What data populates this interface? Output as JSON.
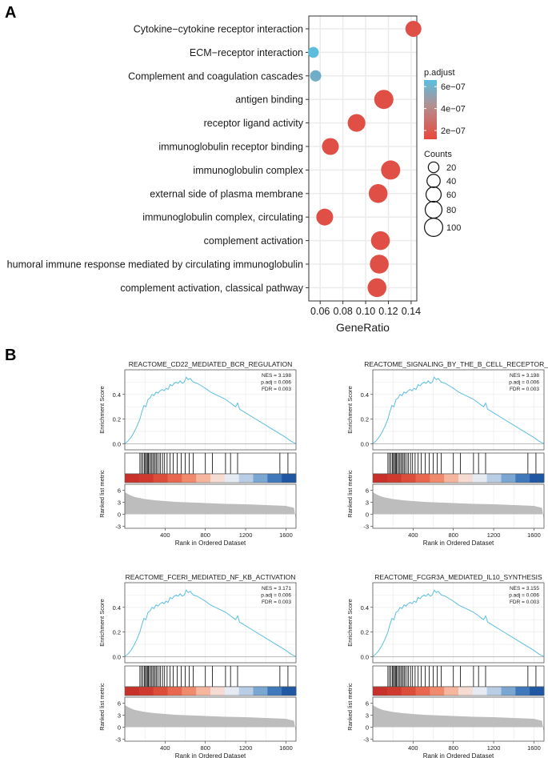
{
  "panel_a_label": "A",
  "panel_b_label": "B",
  "chart_data": [
    {
      "type": "scatter",
      "subtype": "dotplot",
      "xlabel": "GeneRatio",
      "xlim": [
        0.05,
        0.145
      ],
      "xticks": [
        0.06,
        0.08,
        0.1,
        0.12,
        0.14
      ],
      "xtick_labels": [
        "0.06",
        "0.08",
        "0.10",
        "0.12",
        "0.14"
      ],
      "grid": true,
      "terms": [
        {
          "label": "Cytokine−cytokine receptor interaction",
          "x": 0.142,
          "count": 60,
          "p_adjust": 1.5e-07
        },
        {
          "label": "ECM−receptor interaction",
          "x": 0.054,
          "count": 18,
          "p_adjust": 6.5e-07
        },
        {
          "label": "Complement and coagulation cascades",
          "x": 0.056,
          "count": 20,
          "p_adjust": 5.8e-07
        },
        {
          "label": "antigen binding",
          "x": 0.116,
          "count": 100,
          "p_adjust": 1.5e-07
        },
        {
          "label": "receptor ligand activity",
          "x": 0.092,
          "count": 80,
          "p_adjust": 1.5e-07
        },
        {
          "label": "immunoglobulin receptor binding",
          "x": 0.069,
          "count": 70,
          "p_adjust": 1.5e-07
        },
        {
          "label": "immunoglobulin complex",
          "x": 0.122,
          "count": 100,
          "p_adjust": 1.5e-07
        },
        {
          "label": "external side of plasma membrane",
          "x": 0.111,
          "count": 95,
          "p_adjust": 1.5e-07
        },
        {
          "label": "immunoglobulin complex, circulating",
          "x": 0.064,
          "count": 70,
          "p_adjust": 1.5e-07
        },
        {
          "label": "complement activation",
          "x": 0.113,
          "count": 95,
          "p_adjust": 1.5e-07
        },
        {
          "label": "humoral immune response mediated by circulating immunoglobulin",
          "x": 0.112,
          "count": 95,
          "p_adjust": 1.5e-07
        },
        {
          "label": "complement activation, classical pathway",
          "x": 0.11,
          "count": 95,
          "p_adjust": 1.5e-07
        }
      ],
      "legend": {
        "color_title": "p.adjust",
        "color_ticks": [
          {
            "value": 6e-07,
            "label": "6e−07"
          },
          {
            "value": 4e-07,
            "label": "4e−07"
          },
          {
            "value": 2e-07,
            "label": "2e−07"
          }
        ],
        "color_range": [
          1.2e-07,
          6.6e-07
        ],
        "color_low": "#e8483c",
        "color_high": "#5bbfe0",
        "size_title": "Counts",
        "size_items": [
          20,
          40,
          60,
          80,
          100
        ]
      }
    },
    {
      "type": "line",
      "subtype": "gsea",
      "title": "REACTOME_CD22_MEDIATED_BCR_REGULATION",
      "stats": [
        "NES = 3.198",
        "p.adj = 0.006",
        "FDR = 0.003"
      ],
      "ylabel_top": "Enrichment Score",
      "ylabel_bottom": "Ranked list metric",
      "xlabel": "Rank in Ordered Dataset",
      "xlim": [
        0,
        1700
      ],
      "xticks": [
        400,
        800,
        1200,
        1600
      ],
      "es_ylim": [
        -0.05,
        0.6
      ],
      "es_yticks": [
        0.0,
        0.2,
        0.4
      ],
      "es_ytick_labels": [
        "0.0",
        "0.2",
        "0.4"
      ],
      "metric_ylim": [
        -3.5,
        7.5
      ],
      "metric_yticks": [
        -3,
        0,
        3,
        6
      ],
      "metric_ytick_labels": [
        "-3",
        "0",
        "3",
        "6"
      ],
      "es_curve": {
        "x": [
          0,
          30,
          60,
          90,
          120,
          150,
          170,
          190,
          210,
          230,
          250,
          270,
          290,
          310,
          330,
          350,
          370,
          390,
          410,
          430,
          450,
          470,
          490,
          510,
          530,
          550,
          570,
          590,
          610,
          630,
          650,
          680,
          720,
          760,
          800,
          850,
          900,
          950,
          1000,
          1050,
          1100,
          1120,
          1140,
          1200,
          1300,
          1400,
          1500,
          1600,
          1650,
          1700
        ],
        "y": [
          0,
          0.02,
          0.05,
          0.09,
          0.14,
          0.2,
          0.26,
          0.31,
          0.3,
          0.36,
          0.37,
          0.4,
          0.39,
          0.42,
          0.41,
          0.43,
          0.44,
          0.43,
          0.45,
          0.44,
          0.48,
          0.47,
          0.49,
          0.5,
          0.49,
          0.51,
          0.49,
          0.5,
          0.54,
          0.52,
          0.53,
          0.5,
          0.49,
          0.47,
          0.45,
          0.42,
          0.4,
          0.38,
          0.36,
          0.33,
          0.3,
          0.33,
          0.28,
          0.25,
          0.2,
          0.15,
          0.1,
          0.05,
          0.02,
          0.0
        ]
      },
      "hits": [
        150,
        165,
        180,
        195,
        205,
        215,
        225,
        235,
        245,
        260,
        270,
        285,
        295,
        310,
        320,
        340,
        355,
        375,
        395,
        420,
        450,
        480,
        520,
        560,
        600,
        640,
        680,
        800,
        870,
        1000,
        1050,
        1120,
        1540,
        1620
      ],
      "metric_curve": {
        "x": [
          0,
          50,
          100,
          200,
          300,
          400,
          500,
          600,
          800,
          1000,
          1200,
          1400,
          1600,
          1680,
          1700
        ],
        "y": [
          5.5,
          4.8,
          4.3,
          3.8,
          3.5,
          3.3,
          3.1,
          3.0,
          2.8,
          2.6,
          2.5,
          2.3,
          2.1,
          1.6,
          -1.5
        ]
      }
    },
    {
      "type": "line",
      "subtype": "gsea",
      "title": "REACTOME_SIGNALING_BY_THE_B_CELL_RECEPTOR_B",
      "stats": [
        "NES = 3.198",
        "p.adj = 0.006",
        "FDR = 0.003"
      ],
      "ylabel_top": "Enrichment Score",
      "ylabel_bottom": "Ranked list metric",
      "xlabel": "Rank in Ordered Dataset",
      "xlim": [
        0,
        1700
      ],
      "xticks": [
        400,
        800,
        1200,
        1600
      ],
      "es_ylim": [
        -0.05,
        0.6
      ],
      "es_yticks": [
        0.0,
        0.2,
        0.4
      ],
      "es_ytick_labels": [
        "0.0",
        "0.2",
        "0.4"
      ],
      "metric_ylim": [
        -3.5,
        7.5
      ],
      "metric_yticks": [
        -3,
        0,
        3,
        6
      ],
      "metric_ytick_labels": [
        "-3",
        "0",
        "3",
        "6"
      ],
      "es_curve": {
        "x": [
          0,
          30,
          60,
          90,
          120,
          150,
          170,
          190,
          210,
          230,
          250,
          270,
          290,
          310,
          330,
          350,
          370,
          390,
          410,
          430,
          450,
          470,
          490,
          510,
          530,
          550,
          570,
          590,
          610,
          630,
          650,
          680,
          720,
          760,
          800,
          850,
          900,
          950,
          1000,
          1050,
          1100,
          1120,
          1140,
          1200,
          1300,
          1400,
          1500,
          1600,
          1650,
          1700
        ],
        "y": [
          0,
          0.02,
          0.05,
          0.09,
          0.14,
          0.2,
          0.26,
          0.31,
          0.3,
          0.36,
          0.37,
          0.4,
          0.39,
          0.42,
          0.41,
          0.43,
          0.44,
          0.43,
          0.45,
          0.44,
          0.48,
          0.47,
          0.49,
          0.5,
          0.49,
          0.51,
          0.49,
          0.5,
          0.54,
          0.52,
          0.53,
          0.5,
          0.49,
          0.47,
          0.45,
          0.42,
          0.4,
          0.38,
          0.36,
          0.33,
          0.3,
          0.33,
          0.28,
          0.25,
          0.2,
          0.15,
          0.1,
          0.05,
          0.02,
          0.0
        ]
      },
      "hits": [
        150,
        165,
        180,
        195,
        205,
        215,
        225,
        235,
        245,
        260,
        270,
        285,
        295,
        310,
        320,
        340,
        355,
        375,
        395,
        420,
        450,
        480,
        520,
        560,
        600,
        640,
        680,
        800,
        870,
        1000,
        1050,
        1120,
        1540,
        1620
      ],
      "metric_curve": {
        "x": [
          0,
          50,
          100,
          200,
          300,
          400,
          500,
          600,
          800,
          1000,
          1200,
          1400,
          1600,
          1680,
          1700
        ],
        "y": [
          5.5,
          4.8,
          4.3,
          3.8,
          3.5,
          3.3,
          3.1,
          3.0,
          2.8,
          2.6,
          2.5,
          2.3,
          2.1,
          1.6,
          -1.5
        ]
      }
    },
    {
      "type": "line",
      "subtype": "gsea",
      "title": "REACTOME_FCERI_MEDIATED_NF_KB_ACTIVATION",
      "stats": [
        "NES = 3.171",
        "p.adj = 0.006",
        "FDR = 0.003"
      ],
      "ylabel_top": "Enrichment Score",
      "ylabel_bottom": "Ranked list metric",
      "xlabel": "Rank in Ordered Dataset",
      "xlim": [
        0,
        1700
      ],
      "xticks": [
        400,
        800,
        1200,
        1600
      ],
      "es_ylim": [
        -0.05,
        0.6
      ],
      "es_yticks": [
        0.0,
        0.2,
        0.4
      ],
      "es_ytick_labels": [
        "0.0",
        "0.2",
        "0.4"
      ],
      "metric_ylim": [
        -3.5,
        7.5
      ],
      "metric_yticks": [
        -3,
        0,
        3,
        6
      ],
      "metric_ytick_labels": [
        "-3",
        "0",
        "3",
        "6"
      ],
      "es_curve": {
        "x": [
          0,
          30,
          60,
          90,
          120,
          150,
          170,
          190,
          210,
          230,
          250,
          270,
          290,
          310,
          330,
          350,
          370,
          390,
          410,
          430,
          450,
          470,
          490,
          510,
          530,
          550,
          570,
          590,
          610,
          630,
          650,
          680,
          720,
          760,
          800,
          850,
          900,
          950,
          1000,
          1050,
          1100,
          1120,
          1140,
          1200,
          1300,
          1400,
          1500,
          1600,
          1650,
          1700
        ],
        "y": [
          0,
          0.02,
          0.05,
          0.09,
          0.14,
          0.2,
          0.26,
          0.31,
          0.3,
          0.36,
          0.37,
          0.4,
          0.39,
          0.42,
          0.41,
          0.43,
          0.44,
          0.43,
          0.45,
          0.44,
          0.48,
          0.47,
          0.49,
          0.5,
          0.49,
          0.51,
          0.49,
          0.5,
          0.54,
          0.52,
          0.53,
          0.5,
          0.49,
          0.47,
          0.45,
          0.42,
          0.4,
          0.38,
          0.36,
          0.33,
          0.3,
          0.33,
          0.28,
          0.25,
          0.2,
          0.15,
          0.1,
          0.05,
          0.02,
          0.0
        ]
      },
      "hits": [
        150,
        165,
        180,
        195,
        205,
        215,
        225,
        235,
        245,
        260,
        270,
        285,
        295,
        310,
        320,
        340,
        355,
        375,
        395,
        420,
        450,
        480,
        520,
        560,
        600,
        640,
        680,
        800,
        870,
        1000,
        1050,
        1120,
        1540,
        1620
      ],
      "metric_curve": {
        "x": [
          0,
          50,
          100,
          200,
          300,
          400,
          500,
          600,
          800,
          1000,
          1200,
          1400,
          1600,
          1680,
          1700
        ],
        "y": [
          5.5,
          4.8,
          4.3,
          3.8,
          3.5,
          3.3,
          3.1,
          3.0,
          2.8,
          2.6,
          2.5,
          2.3,
          2.1,
          1.6,
          -1.5
        ]
      }
    },
    {
      "type": "line",
      "subtype": "gsea",
      "title": "REACTOME_FCGR3A_MEDIATED_IL10_SYNTHESIS",
      "stats": [
        "NES = 3.155",
        "p.adj = 0.006",
        "FDR = 0.003"
      ],
      "ylabel_top": "Enrichment Score",
      "ylabel_bottom": "Ranked list metric",
      "xlabel": "Rank in Ordered Dataset",
      "xlim": [
        0,
        1700
      ],
      "xticks": [
        400,
        800,
        1200,
        1600
      ],
      "es_ylim": [
        -0.05,
        0.6
      ],
      "es_yticks": [
        0.0,
        0.2,
        0.4
      ],
      "es_ytick_labels": [
        "0.0",
        "0.2",
        "0.4"
      ],
      "metric_ylim": [
        -3.5,
        7.5
      ],
      "metric_yticks": [
        -3,
        0,
        3,
        6
      ],
      "metric_ytick_labels": [
        "-3",
        "0",
        "3",
        "6"
      ],
      "es_curve": {
        "x": [
          0,
          30,
          60,
          90,
          120,
          150,
          170,
          190,
          210,
          230,
          250,
          270,
          290,
          310,
          330,
          350,
          370,
          390,
          410,
          430,
          450,
          470,
          490,
          510,
          530,
          550,
          570,
          590,
          610,
          630,
          650,
          680,
          720,
          760,
          800,
          850,
          900,
          950,
          1000,
          1050,
          1100,
          1120,
          1140,
          1200,
          1300,
          1400,
          1500,
          1600,
          1650,
          1700
        ],
        "y": [
          0,
          0.02,
          0.05,
          0.09,
          0.14,
          0.2,
          0.26,
          0.31,
          0.3,
          0.36,
          0.37,
          0.4,
          0.39,
          0.42,
          0.41,
          0.43,
          0.44,
          0.43,
          0.45,
          0.44,
          0.48,
          0.47,
          0.49,
          0.5,
          0.49,
          0.51,
          0.49,
          0.5,
          0.54,
          0.52,
          0.53,
          0.5,
          0.49,
          0.47,
          0.45,
          0.42,
          0.4,
          0.38,
          0.36,
          0.33,
          0.3,
          0.33,
          0.28,
          0.25,
          0.2,
          0.15,
          0.1,
          0.05,
          0.02,
          0.0
        ]
      },
      "hits": [
        150,
        165,
        180,
        195,
        205,
        215,
        225,
        235,
        245,
        260,
        270,
        285,
        295,
        310,
        320,
        340,
        355,
        375,
        395,
        420,
        450,
        480,
        520,
        560,
        600,
        640,
        680,
        800,
        870,
        1000,
        1050,
        1120,
        1540,
        1620
      ],
      "metric_curve": {
        "x": [
          0,
          50,
          100,
          200,
          300,
          400,
          500,
          600,
          800,
          1000,
          1200,
          1400,
          1600,
          1680,
          1700
        ],
        "y": [
          5.5,
          4.8,
          4.3,
          3.8,
          3.5,
          3.3,
          3.1,
          3.0,
          2.8,
          2.6,
          2.5,
          2.3,
          2.1,
          1.6,
          -1.5
        ]
      }
    }
  ],
  "colors": {
    "es_line": "#5bbfe0",
    "hit_line": "#000000",
    "metric_fill": "#bdbdbd",
    "heat_colors": [
      "#c8312a",
      "#d03a2e",
      "#dc4d3a",
      "#e8674e",
      "#f08a6c",
      "#f6b69e",
      "#f5dbd1",
      "#e6eaf2",
      "#b9cde4",
      "#7aa6d2",
      "#3f78bb",
      "#1f57a3"
    ],
    "panel_border": "#555555",
    "grid_major": "#ebebeb",
    "grid_panel": "#e8e8e8"
  }
}
